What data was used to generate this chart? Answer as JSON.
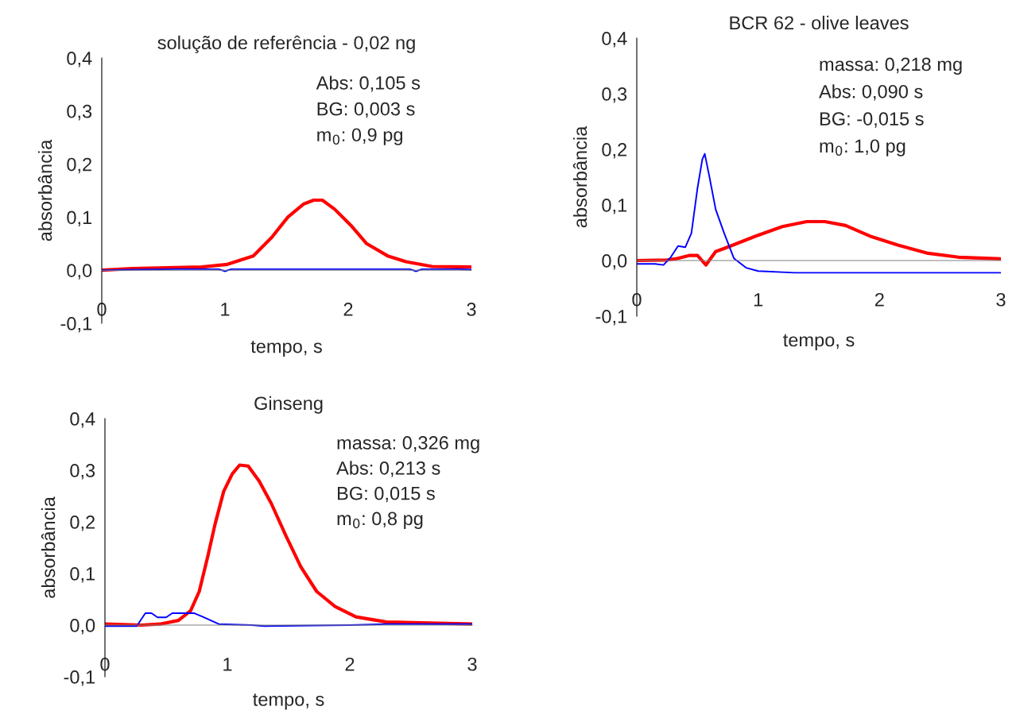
{
  "chart_data": [
    {
      "type": "line",
      "title": "solução de referência - 0,02 ng",
      "xlabel": "tempo, s",
      "ylabel": "absorbância",
      "xlim": [
        0,
        3
      ],
      "ylim": [
        -0.1,
        0.4
      ],
      "xticks": [
        0,
        1,
        2,
        3
      ],
      "yticks": [
        {
          "value": -0.1,
          "label": "-0,1"
        },
        {
          "value": 0,
          "label": "0,0"
        },
        {
          "value": 0.1,
          "label": "0,1"
        },
        {
          "value": 0.2,
          "label": "0,2"
        },
        {
          "value": 0.3,
          "label": "0,3"
        },
        {
          "value": 0.4,
          "label": "0,4"
        }
      ],
      "grid": false,
      "annotations": [
        "Abs: 0,105 s",
        "BG: 0,003 s",
        "m$_{0}$: 0,9 pg"
      ],
      "series": [
        {
          "color": "#ff0000",
          "x": [
            0,
            0.25,
            0.81,
            1.02,
            1.23,
            1.38,
            1.51,
            1.64,
            1.72,
            1.79,
            1.89,
            2.02,
            2.15,
            2.32,
            2.47,
            2.68,
            3
          ],
          "values": [
            0,
            0.003,
            0.006,
            0.011,
            0.027,
            0.062,
            0.1,
            0.125,
            0.132,
            0.132,
            0.115,
            0.085,
            0.05,
            0.027,
            0.016,
            0.007,
            0.006
          ]
        },
        {
          "color": "#0000ff",
          "x": [
            0,
            0.25,
            0.6,
            0.95,
            1.0,
            1.05,
            2.5,
            2.55,
            2.6,
            2.9,
            3
          ],
          "values": [
            0,
            0.001,
            0.002,
            0.002,
            -0.002,
            0.002,
            0.002,
            -0.002,
            0.002,
            0.002,
            0.001
          ]
        }
      ]
    },
    {
      "type": "line",
      "title": "BCR 62 - olive leaves",
      "xlabel": "tempo, s",
      "ylabel": "absorbância",
      "xlim": [
        0,
        3
      ],
      "ylim": [
        -0.1,
        0.4
      ],
      "xticks": [
        0,
        1,
        2,
        3
      ],
      "yticks": [
        {
          "value": -0.1,
          "label": "-0,1"
        },
        {
          "value": 0,
          "label": "0,0"
        },
        {
          "value": 0.1,
          "label": "0,1"
        },
        {
          "value": 0.2,
          "label": "0,2"
        },
        {
          "value": 0.3,
          "label": "0,3"
        },
        {
          "value": 0.4,
          "label": "0,4"
        }
      ],
      "grid": false,
      "annotations": [
        "massa: 0,218 mg",
        "Abs: 0,090 s",
        "BG: -0,015 s",
        "m$_{0}$: 1,0 pg"
      ],
      "series": [
        {
          "color": "#ff0000",
          "x": [
            0,
            0.25,
            0.32,
            0.43,
            0.5,
            0.57,
            0.65,
            0.76,
            0.98,
            1.2,
            1.4,
            1.55,
            1.72,
            1.92,
            2.15,
            2.4,
            2.65,
            3
          ],
          "values": [
            0,
            0.001,
            0.003,
            0.009,
            0.009,
            -0.008,
            0.016,
            0.025,
            0.044,
            0.061,
            0.07,
            0.07,
            0.063,
            0.044,
            0.028,
            0.013,
            0.006,
            0.003
          ]
        },
        {
          "color": "#0000ff",
          "x": [
            0,
            0.15,
            0.22,
            0.28,
            0.34,
            0.4,
            0.45,
            0.5,
            0.54,
            0.56,
            0.6,
            0.65,
            0.72,
            0.8,
            0.9,
            1.0,
            1.3,
            2.0,
            3
          ],
          "values": [
            -0.006,
            -0.006,
            -0.008,
            0.006,
            0.026,
            0.024,
            0.049,
            0.13,
            0.182,
            0.192,
            0.149,
            0.092,
            0.049,
            0.004,
            -0.013,
            -0.019,
            -0.022,
            -0.022,
            -0.022
          ]
        }
      ]
    },
    {
      "type": "line",
      "title": "Ginseng",
      "xlabel": "tempo, s",
      "ylabel": "absorbância",
      "xlim": [
        0,
        3
      ],
      "ylim": [
        -0.1,
        0.4
      ],
      "xticks": [
        0,
        1,
        2,
        3
      ],
      "yticks": [
        {
          "value": -0.1,
          "label": "-0,1"
        },
        {
          "value": 0,
          "label": "0,0"
        },
        {
          "value": 0.1,
          "label": "0,1"
        },
        {
          "value": 0.2,
          "label": "0,2"
        },
        {
          "value": 0.3,
          "label": "0,3"
        },
        {
          "value": 0.4,
          "label": "0,4"
        }
      ],
      "grid": false,
      "annotations": [
        "massa: 0,326 mg",
        "Abs: 0,213 s",
        "BG: 0,015 s",
        "m$_{0}$: 0,8 pg"
      ],
      "series": [
        {
          "color": "#ff0000",
          "x": [
            0,
            0.3,
            0.45,
            0.6,
            0.7,
            0.77,
            0.84,
            0.9,
            0.97,
            1.04,
            1.1,
            1.17,
            1.26,
            1.36,
            1.48,
            1.6,
            1.73,
            1.88,
            2.05,
            2.3,
            3
          ],
          "values": [
            0.002,
            0,
            0.002,
            0.009,
            0.028,
            0.065,
            0.133,
            0.196,
            0.259,
            0.293,
            0.31,
            0.308,
            0.279,
            0.235,
            0.172,
            0.113,
            0.065,
            0.036,
            0.016,
            0.006,
            0.002
          ]
        },
        {
          "color": "#0000ff",
          "x": [
            0,
            0.26,
            0.33,
            0.38,
            0.43,
            0.5,
            0.55,
            0.73,
            0.8,
            0.93,
            1.2,
            1.3,
            2.0,
            2.3,
            3
          ],
          "values": [
            -0.002,
            -0.002,
            0.023,
            0.023,
            0.015,
            0.015,
            0.023,
            0.023,
            0.016,
            0.002,
            0,
            -0.002,
            0,
            0.002,
            0.002
          ]
        }
      ]
    }
  ]
}
